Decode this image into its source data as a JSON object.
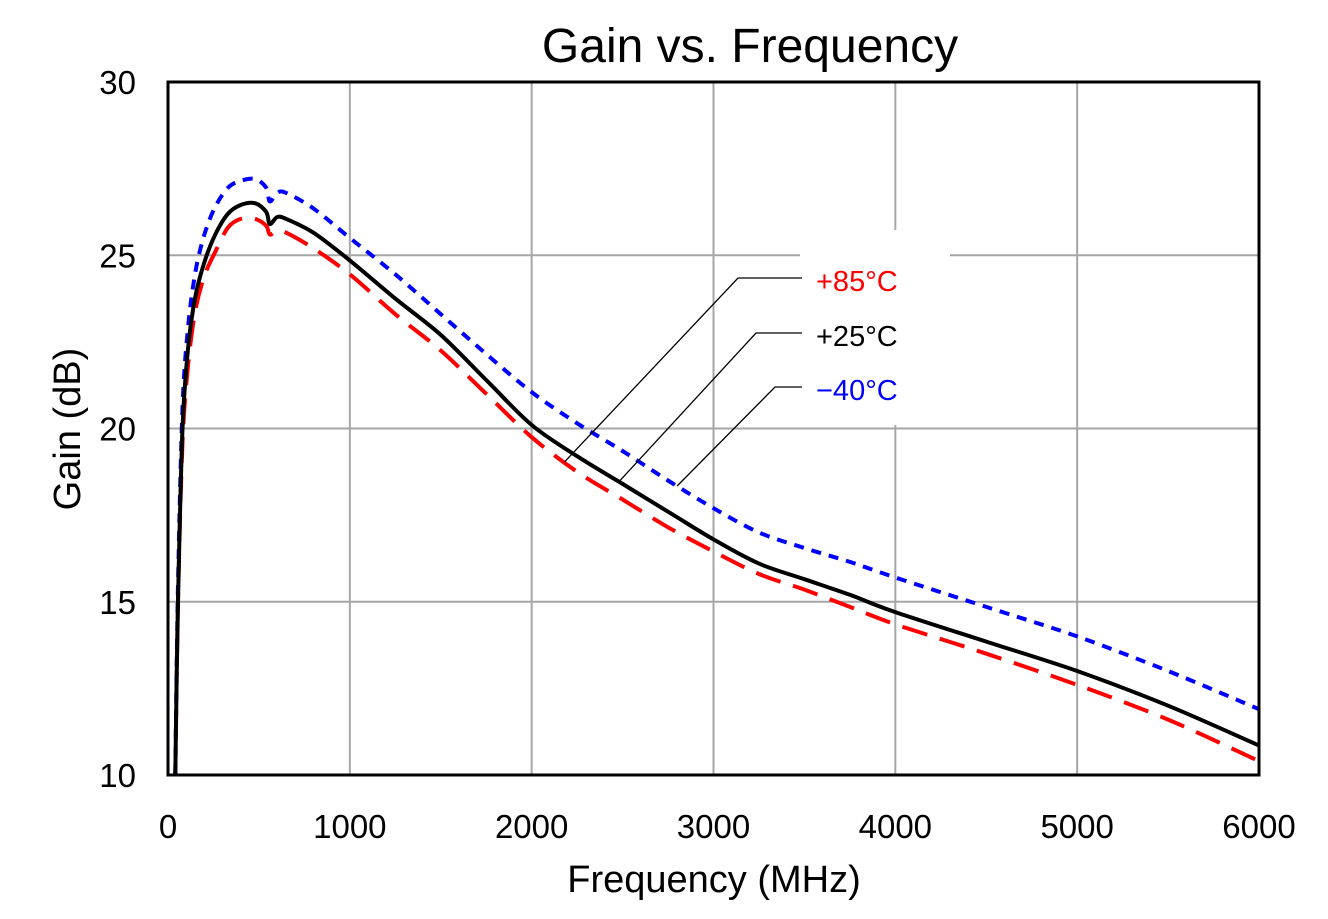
{
  "chart_data": {
    "type": "line",
    "title": "Gain vs. Frequency",
    "xlabel": "Frequency (MHz)",
    "ylabel": "Gain (dB)",
    "xlim": [
      0,
      6000
    ],
    "ylim": [
      10,
      30
    ],
    "xticks": [
      0,
      1000,
      2000,
      3000,
      4000,
      5000,
      6000
    ],
    "yticks": [
      10,
      15,
      20,
      25,
      30
    ],
    "xtick_labels": [
      "0",
      "1000",
      "2000",
      "3000",
      "4000",
      "5000",
      "6000"
    ],
    "ytick_labels": [
      "10",
      "15",
      "20",
      "25",
      "30"
    ],
    "grid": true,
    "legend_placement": "annotated callouts, upper-right of center",
    "series": [
      {
        "name": "+85°C",
        "color": "#ff0000",
        "dash": "long-dash",
        "x": [
          40,
          55,
          80,
          110,
          150,
          200,
          260,
          330,
          400,
          480,
          540,
          560,
          600,
          650,
          800,
          1000,
          1250,
          1500,
          1750,
          2000,
          2250,
          2500,
          2750,
          3000,
          3250,
          3500,
          3750,
          4000,
          4500,
          5000,
          5500,
          6000
        ],
        "y": [
          10,
          15,
          19.6,
          21.8,
          23.4,
          24.4,
          25.1,
          25.8,
          26.05,
          26.05,
          25.85,
          25.6,
          25.7,
          25.65,
          25.2,
          24.45,
          23.3,
          22.25,
          21.0,
          19.75,
          18.75,
          17.95,
          17.15,
          16.45,
          15.8,
          15.35,
          14.85,
          14.35,
          13.5,
          12.6,
          11.6,
          10.4
        ]
      },
      {
        "name": "+25°C",
        "color": "#000000",
        "dash": "solid",
        "x": [
          40,
          55,
          80,
          110,
          150,
          200,
          260,
          330,
          400,
          480,
          540,
          560,
          600,
          650,
          800,
          1000,
          1250,
          1500,
          1750,
          2000,
          2250,
          2500,
          2750,
          3000,
          3250,
          3500,
          3750,
          4000,
          4500,
          5000,
          5500,
          6000
        ],
        "y": [
          10,
          15,
          20.0,
          22.3,
          23.8,
          24.8,
          25.6,
          26.2,
          26.45,
          26.5,
          26.25,
          25.9,
          26.1,
          26.05,
          25.65,
          24.85,
          23.75,
          22.7,
          21.4,
          20.1,
          19.2,
          18.4,
          17.6,
          16.8,
          16.1,
          15.65,
          15.2,
          14.7,
          13.85,
          13.0,
          12.0,
          10.85
        ]
      },
      {
        "name": "−40°C",
        "color": "#0000ff",
        "dash": "short-dash",
        "x": [
          40,
          55,
          80,
          110,
          150,
          200,
          260,
          330,
          400,
          480,
          540,
          560,
          600,
          650,
          800,
          1000,
          1250,
          1500,
          1750,
          2000,
          2250,
          2500,
          2750,
          3000,
          3250,
          3500,
          3750,
          4000,
          4500,
          5000,
          5500,
          6000
        ],
        "y": [
          10,
          15.5,
          20.6,
          22.9,
          24.5,
          25.6,
          26.4,
          26.95,
          27.15,
          27.2,
          26.95,
          26.55,
          26.8,
          26.8,
          26.35,
          25.5,
          24.45,
          23.3,
          22.15,
          21.05,
          20.15,
          19.35,
          18.5,
          17.7,
          17.0,
          16.55,
          16.15,
          15.7,
          14.85,
          14.0,
          13.0,
          11.9
        ]
      }
    ],
    "annotations": [
      {
        "label": "+85°C",
        "color": "#ff0000",
        "points_to_x": 2180,
        "points_to_series": "+85°C"
      },
      {
        "label": "+25°C",
        "color": "#000000",
        "points_to_x": 2480,
        "points_to_series": "+25°C"
      },
      {
        "label": "−40°C",
        "color": "#0000ff",
        "points_to_x": 2800,
        "points_to_series": "−40°C"
      }
    ]
  }
}
